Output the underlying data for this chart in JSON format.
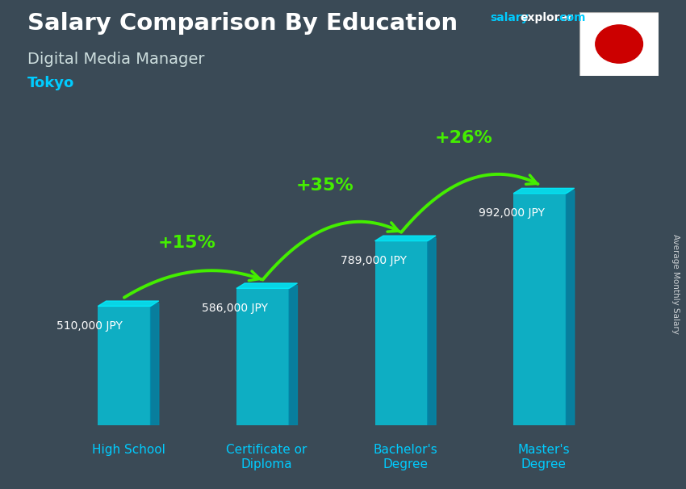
{
  "title": "Salary Comparison By Education",
  "subtitle": "Digital Media Manager",
  "location": "Tokyo",
  "ylabel": "Average Monthly Salary",
  "categories": [
    "High School",
    "Certificate or\nDiploma",
    "Bachelor's\nDegree",
    "Master's\nDegree"
  ],
  "values": [
    510000,
    586000,
    789000,
    992000
  ],
  "value_labels": [
    "510,000 JPY",
    "586,000 JPY",
    "789,000 JPY",
    "992,000 JPY"
  ],
  "pct_labels": [
    "+15%",
    "+35%",
    "+26%"
  ],
  "bar_color_front": "#00d0e8",
  "bar_color_right": "#0088aa",
  "bar_color_top": "#00eeff",
  "arrow_color": "#44ee00",
  "title_color": "#ffffff",
  "subtitle_color": "#dddddd",
  "location_color": "#00ccff",
  "value_color": "#ffffff",
  "pct_color": "#44ee00",
  "xlabel_color": "#00ccff",
  "bg_color": "#3a4a56",
  "figsize": [
    8.5,
    6.06
  ],
  "dpi": 100,
  "ylim": [
    0,
    1150000
  ]
}
